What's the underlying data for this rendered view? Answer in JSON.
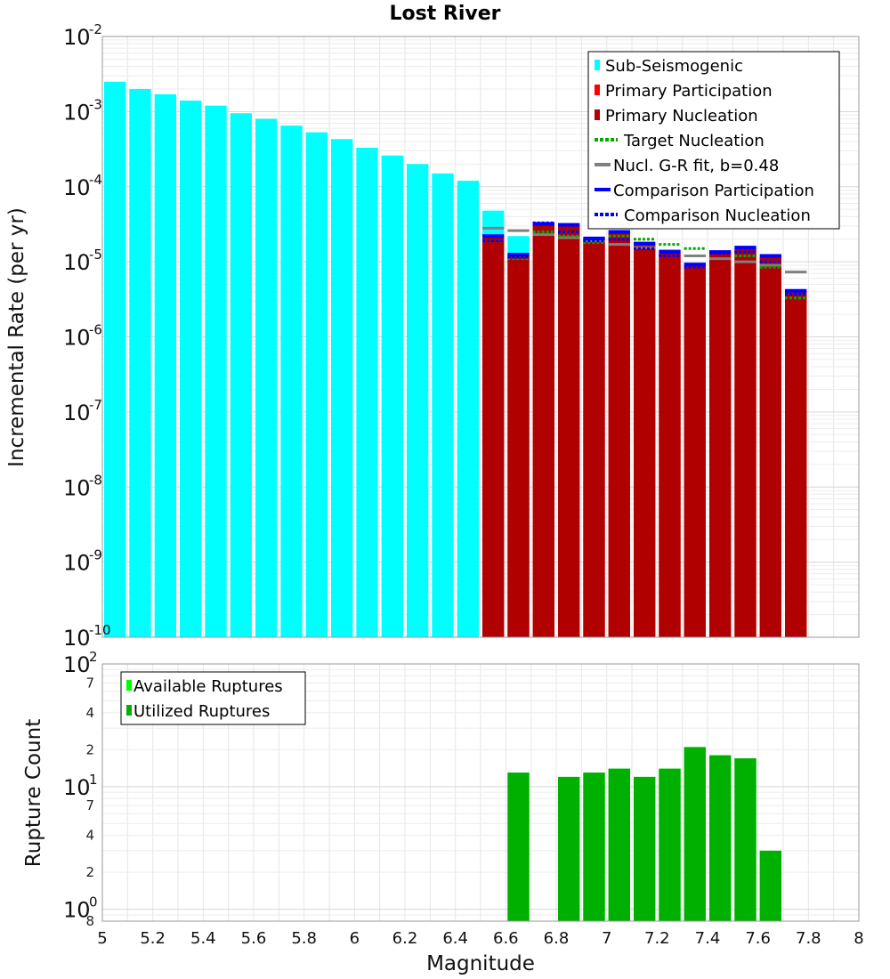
{
  "chart_data": [
    {
      "type": "bar",
      "title": "Lost River",
      "xlabel": "",
      "ylabel": "Incremental Rate (per yr)",
      "xlim": [
        5,
        8
      ],
      "ylim": [
        1e-10,
        0.01
      ],
      "yscale": "log",
      "y_tick_bases": [
        "10",
        "10",
        "10",
        "10",
        "10",
        "10",
        "10",
        "10",
        "10"
      ],
      "y_tick_exponents": [
        "-2",
        "-3",
        "-4",
        "-5",
        "-6",
        "-7",
        "-8",
        "-9",
        "-10"
      ],
      "bin_width": 0.1,
      "grid": true,
      "legend_position": "top-right",
      "legend": [
        "Sub-Seismogenic",
        "Primary Participation",
        "Primary Nucleation",
        "Target Nucleation",
        "Nucl. G-R fit, b=0.48",
        "Comparison Participation",
        "Comparison Nucleation"
      ],
      "series": [
        {
          "name": "Sub-Seismogenic",
          "color": "#00ffff",
          "x": [
            5.05,
            5.15,
            5.25,
            5.35,
            5.45,
            5.55,
            5.65,
            5.75,
            5.85,
            5.95,
            6.05,
            6.15,
            6.25,
            6.35,
            6.45,
            6.55,
            6.65
          ],
          "values": [
            0.0025,
            0.002,
            0.0017,
            0.0014,
            0.0012,
            0.00095,
            0.0008,
            0.00065,
            0.00053,
            0.00043,
            0.00033,
            0.00026,
            0.0002,
            0.00015,
            0.00012,
            4.8e-05,
            2.2e-05
          ]
        },
        {
          "name": "Primary Participation",
          "color": "#ff0000",
          "x": [
            6.55,
            6.65,
            6.75,
            6.85,
            6.95,
            7.05,
            7.15,
            7.25,
            7.35,
            7.45,
            7.55,
            7.65,
            7.75
          ],
          "values": [
            2.1e-05,
            1.2e-05,
            3.1e-05,
            3e-05,
            2e-05,
            2.4e-05,
            1.7e-05,
            1.3e-05,
            9e-06,
            1.3e-05,
            1.5e-05,
            1.15e-05,
            4e-06
          ]
        },
        {
          "name": "Primary Nucleation",
          "color": "#b00000",
          "x": [
            6.55,
            6.65,
            6.75,
            6.85,
            6.95,
            7.05,
            7.15,
            7.25,
            7.35,
            7.45,
            7.55,
            7.65,
            7.75
          ],
          "values": [
            2.1e-05,
            1.2e-05,
            3.1e-05,
            3e-05,
            2e-05,
            2.4e-05,
            1.7e-05,
            1.3e-05,
            9e-06,
            1.3e-05,
            1.5e-05,
            1.15e-05,
            4e-06
          ]
        },
        {
          "name": "Target Nucleation",
          "color": "#00aa00",
          "x": [
            6.55,
            6.65,
            6.75,
            6.85,
            6.95,
            7.05,
            7.15,
            7.25,
            7.35,
            7.45,
            7.55,
            7.65,
            7.75
          ],
          "values": [
            1.9e-05,
            1.1e-05,
            2.5e-05,
            2.2e-05,
            1.8e-05,
            2.2e-05,
            2e-05,
            1.7e-05,
            1.5e-05,
            1.3e-05,
            1.2e-05,
            8.5e-06,
            3.3e-06
          ]
        },
        {
          "name": "Nucl. G-R fit, b=0.48",
          "color": "#808080",
          "x": [
            6.55,
            6.65,
            6.75,
            6.85,
            6.95,
            7.05,
            7.15,
            7.25,
            7.35,
            7.45,
            7.55,
            7.65,
            7.75
          ],
          "values": [
            2.8e-05,
            2.6e-05,
            2.3e-05,
            2.1e-05,
            1.9e-05,
            1.7e-05,
            1.55e-05,
            1.4e-05,
            1.2e-05,
            1.1e-05,
            1e-05,
            9e-06,
            7.3e-06
          ]
        },
        {
          "name": "Comparison Participation",
          "color": "#0000ff",
          "x": [
            6.55,
            6.65,
            6.75,
            6.85,
            6.95,
            7.05,
            7.15,
            7.25,
            7.35,
            7.45,
            7.55,
            7.65,
            7.75
          ],
          "values": [
            2.2e-05,
            1.25e-05,
            3.2e-05,
            3.1e-05,
            2.05e-05,
            2.5e-05,
            1.75e-05,
            1.35e-05,
            9.2e-06,
            1.35e-05,
            1.55e-05,
            1.2e-05,
            4.1e-06
          ]
        },
        {
          "name": "Comparison Nucleation",
          "color": "#0000ff",
          "x": [
            6.55,
            6.65,
            6.75,
            6.85,
            6.95,
            7.05,
            7.15,
            7.25,
            7.35,
            7.45,
            7.55,
            7.65,
            7.75
          ],
          "values": [
            1.9e-05,
            1.15e-05,
            3.3e-05,
            2.5e-05,
            1.9e-05,
            2e-05,
            1.5e-05,
            1.2e-05,
            8.5e-06,
            1.3e-05,
            1.35e-05,
            1e-05,
            3.7e-06
          ]
        }
      ]
    },
    {
      "type": "bar",
      "title": "",
      "xlabel": "Magnitude",
      "ylabel": "Rupture Count",
      "xlim": [
        5,
        8
      ],
      "ylim": [
        0.8,
        100
      ],
      "yscale": "log",
      "x_ticks": [
        "5",
        "5.2",
        "5.4",
        "5.6",
        "5.8",
        "6",
        "6.2",
        "6.4",
        "6.6",
        "6.8",
        "7",
        "7.2",
        "7.4",
        "7.6",
        "7.8",
        "8"
      ],
      "y_major_ticks": [
        {
          "value": 100,
          "base": "10",
          "exp": "2"
        },
        {
          "value": 10,
          "base": "10",
          "exp": "1"
        },
        {
          "value": 1,
          "base": "10",
          "exp": "0"
        }
      ],
      "y_minor_ticks": [
        {
          "value": 70,
          "label": "7"
        },
        {
          "value": 40,
          "label": "4"
        },
        {
          "value": 20,
          "label": "2"
        },
        {
          "value": 7,
          "label": "7"
        },
        {
          "value": 4,
          "label": "4"
        },
        {
          "value": 2,
          "label": "2"
        },
        {
          "value": 0.8,
          "label": "8"
        }
      ],
      "bin_width": 0.1,
      "grid": true,
      "legend_position": "top-left",
      "legend": [
        "Available Ruptures",
        "Utilized Ruptures"
      ],
      "series": [
        {
          "name": "Available Ruptures",
          "color": "#00ff00",
          "x": [
            6.65,
            6.85,
            6.95,
            7.05,
            7.15,
            7.25,
            7.35,
            7.45,
            7.55,
            7.65
          ],
          "values": [
            13,
            12,
            13,
            14,
            12,
            14,
            21,
            18,
            17,
            3
          ]
        },
        {
          "name": "Utilized Ruptures",
          "color": "#00b000",
          "x": [
            6.65,
            6.85,
            6.95,
            7.05,
            7.15,
            7.25,
            7.35,
            7.45,
            7.55,
            7.65
          ],
          "values": [
            13,
            12,
            13,
            14,
            12,
            14,
            21,
            18,
            17,
            3
          ]
        }
      ]
    }
  ]
}
